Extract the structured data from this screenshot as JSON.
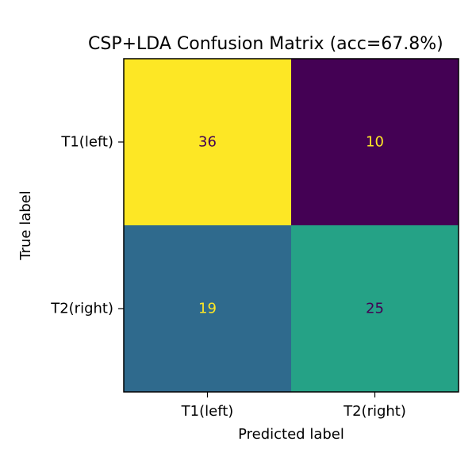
{
  "chart_data": {
    "type": "heatmap",
    "title": "CSP+LDA Confusion Matrix (acc=67.8%)",
    "xlabel": "Predicted label",
    "ylabel": "True label",
    "x_categories": [
      "T1(left)",
      "T2(right)"
    ],
    "y_categories": [
      "T1(left)",
      "T2(right)"
    ],
    "values": [
      [
        36,
        10
      ],
      [
        19,
        25
      ]
    ],
    "vmin": 10,
    "vmax": 36,
    "colormap": "viridis",
    "grid": false
  }
}
